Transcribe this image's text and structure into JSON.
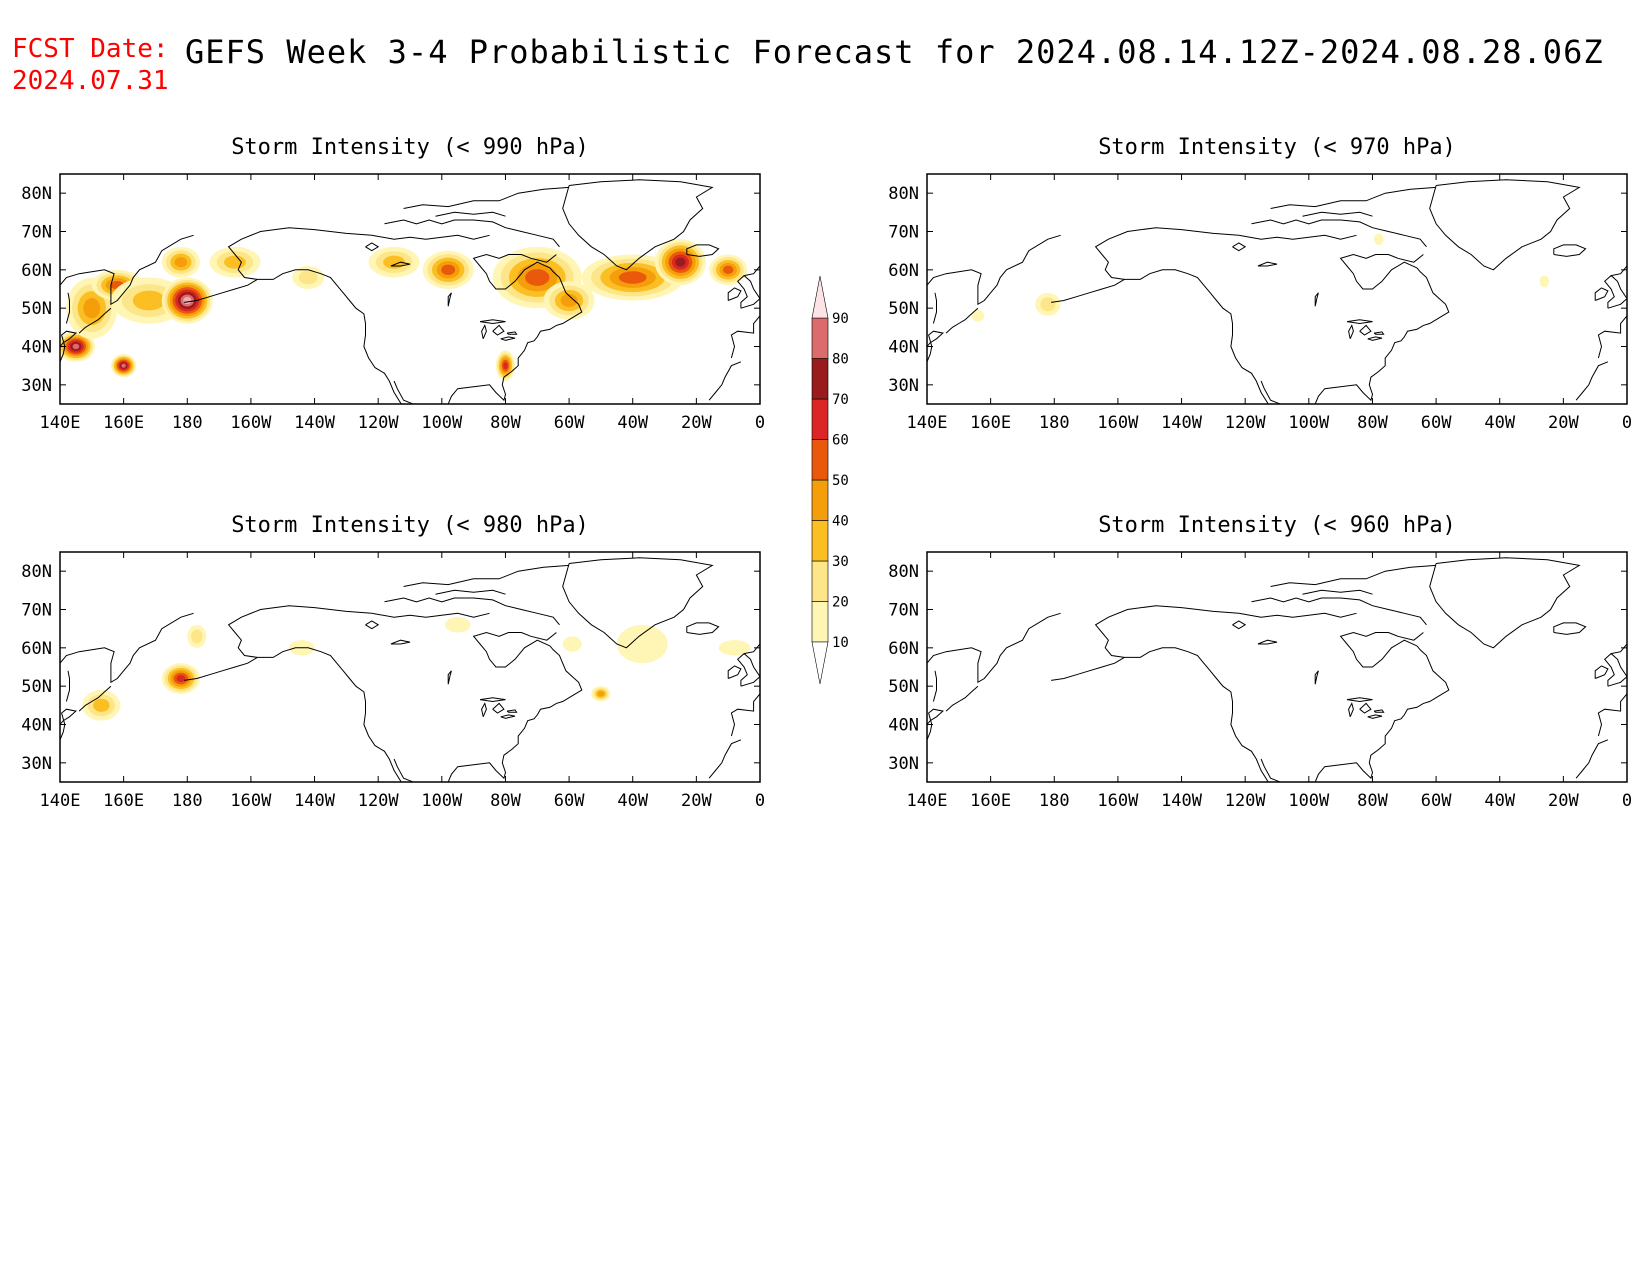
{
  "header": {
    "fcst_label": "FCST Date:",
    "fcst_date": "2024.07.31",
    "title": "GEFS Week 3-4 Probabilistic Forecast for 2024.08.14.12Z-2024.08.28.06Z"
  },
  "axes": {
    "lon_ticks": [
      "140E",
      "160E",
      "180",
      "160W",
      "140W",
      "120W",
      "100W",
      "80W",
      "60W",
      "40W",
      "20W",
      "0"
    ],
    "lat_ticks": [
      "80N",
      "70N",
      "60N",
      "50N",
      "40N",
      "30N"
    ]
  },
  "colorbar": {
    "levels": [
      "10",
      "20",
      "30",
      "40",
      "50",
      "60",
      "70",
      "80",
      "90"
    ],
    "colors": [
      "#fff5b4",
      "#fde68a",
      "#fbbf24",
      "#f59e0b",
      "#ea580c",
      "#dc2626",
      "#991b1b",
      "#dc6b6b",
      "#f5a9b0",
      "#fce4e6"
    ]
  },
  "panels": [
    {
      "title": "Storm Intensity (< 990 hPa)",
      "level_hpa": 990,
      "prob_regions": [
        {
          "lon": 145,
          "lat": 40,
          "rx": 6,
          "ry": 4,
          "cat": 8
        },
        {
          "lon": 150,
          "lat": 50,
          "rx": 8,
          "ry": 8,
          "cat": 4
        },
        {
          "lon": 158,
          "lat": 56,
          "rx": 8,
          "ry": 4,
          "cat": 5
        },
        {
          "lon": 160,
          "lat": 35,
          "rx": 4,
          "ry": 3,
          "cat": 8
        },
        {
          "lon": 168,
          "lat": 52,
          "rx": 12,
          "ry": 6,
          "cat": 3
        },
        {
          "lon": 180,
          "lat": 52,
          "rx": 8,
          "ry": 6,
          "cat": 9
        },
        {
          "lon": 178,
          "lat": 62,
          "rx": 6,
          "ry": 4,
          "cat": 4
        },
        {
          "lon": 195,
          "lat": 62,
          "rx": 8,
          "ry": 4,
          "cat": 3
        },
        {
          "lon": 218,
          "lat": 58,
          "rx": 5,
          "ry": 3,
          "cat": 2
        },
        {
          "lon": 245,
          "lat": 62,
          "rx": 8,
          "ry": 4,
          "cat": 3
        },
        {
          "lon": 262,
          "lat": 60,
          "rx": 8,
          "ry": 5,
          "cat": 5
        },
        {
          "lon": 290,
          "lat": 58,
          "rx": 14,
          "ry": 8,
          "cat": 5
        },
        {
          "lon": 300,
          "lat": 52,
          "rx": 8,
          "ry": 5,
          "cat": 4
        },
        {
          "lon": 320,
          "lat": 58,
          "rx": 16,
          "ry": 6,
          "cat": 5
        },
        {
          "lon": 335,
          "lat": 62,
          "rx": 8,
          "ry": 6,
          "cat": 7
        },
        {
          "lon": 350,
          "lat": 60,
          "rx": 6,
          "ry": 4,
          "cat": 5
        },
        {
          "lon": 280,
          "lat": 35,
          "rx": 3,
          "ry": 4,
          "cat": 6
        }
      ]
    },
    {
      "title": "Storm Intensity (< 970 hPa)",
      "level_hpa": 970,
      "prob_regions": [
        {
          "lon": 178,
          "lat": 51,
          "rx": 4,
          "ry": 3,
          "cat": 2
        },
        {
          "lon": 156,
          "lat": 48,
          "rx": 2,
          "ry": 1.5,
          "cat": 1
        },
        {
          "lon": 282,
          "lat": 68,
          "rx": 1.5,
          "ry": 1.5,
          "cat": 1
        },
        {
          "lon": 334,
          "lat": 57,
          "rx": 1.5,
          "ry": 1.5,
          "cat": 1
        }
      ]
    },
    {
      "title": "Storm Intensity (< 980 hPa)",
      "level_hpa": 980,
      "prob_regions": [
        {
          "lon": 153,
          "lat": 45,
          "rx": 6,
          "ry": 4,
          "cat": 3
        },
        {
          "lon": 178,
          "lat": 52,
          "rx": 6,
          "ry": 4,
          "cat": 6
        },
        {
          "lon": 183,
          "lat": 63,
          "rx": 3,
          "ry": 3,
          "cat": 2
        },
        {
          "lon": 216,
          "lat": 60,
          "rx": 4,
          "ry": 2,
          "cat": 1
        },
        {
          "lon": 265,
          "lat": 66,
          "rx": 4,
          "ry": 2,
          "cat": 1
        },
        {
          "lon": 301,
          "lat": 61,
          "rx": 3,
          "ry": 2,
          "cat": 1
        },
        {
          "lon": 310,
          "lat": 48,
          "rx": 3,
          "ry": 2,
          "cat": 4
        },
        {
          "lon": 323,
          "lat": 61,
          "rx": 8,
          "ry": 5,
          "cat": 1
        },
        {
          "lon": 352,
          "lat": 60,
          "rx": 5,
          "ry": 2,
          "cat": 1
        }
      ]
    },
    {
      "title": "Storm Intensity (< 960 hPa)",
      "level_hpa": 960,
      "prob_regions": []
    }
  ]
}
